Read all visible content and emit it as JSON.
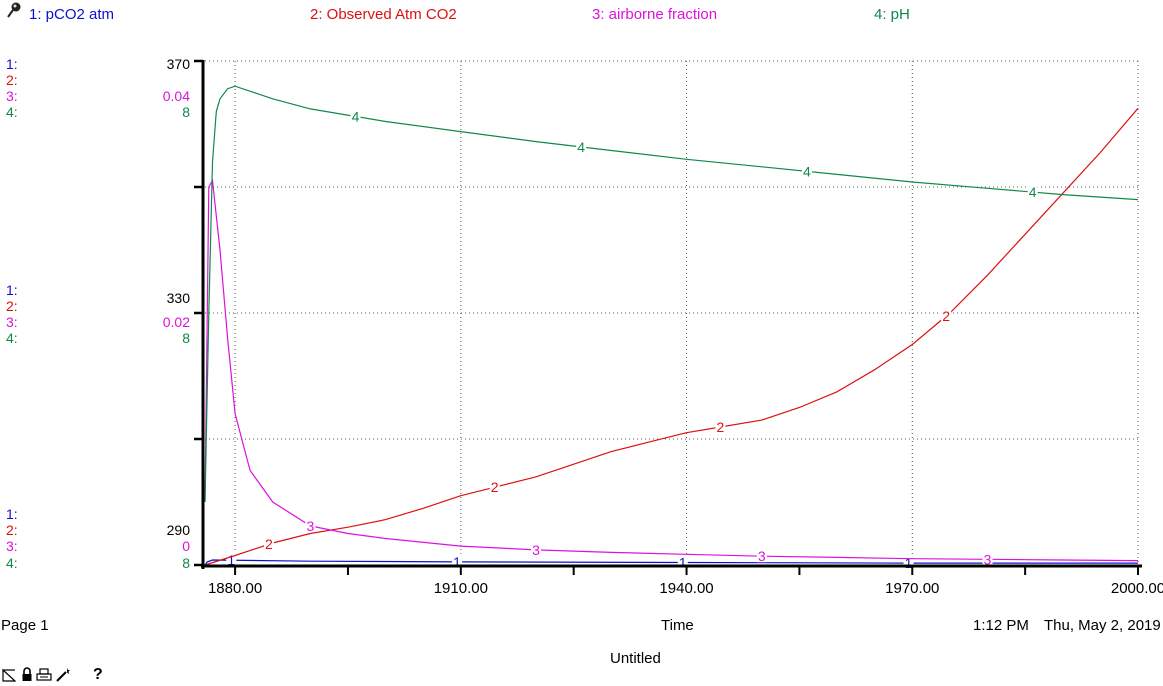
{
  "colors": {
    "pco2": "#1010cc",
    "observed": "#dd1111",
    "airborne": "#dd11dd",
    "ph": "#11884a",
    "axis": "#000000"
  },
  "legend": [
    {
      "label": "1: pCO2 atm",
      "color": "#1010cc"
    },
    {
      "label": "2: Observed Atm CO2",
      "color": "#dd1111"
    },
    {
      "label": "3: airborne fraction",
      "color": "#dd11dd"
    },
    {
      "label": "4: pH",
      "color": "#11884a"
    }
  ],
  "scales": {
    "top": {
      "s1": "1:",
      "s2": "2:",
      "s3": "3:",
      "s4": "4:",
      "v2": "370",
      "v3": "0.04",
      "v4": "8"
    },
    "mid": {
      "s1": "1:",
      "s2": "2:",
      "s3": "3:",
      "s4": "4:",
      "v2": "330",
      "v3": "0.02",
      "v4": "8"
    },
    "bot": {
      "s1": "1:",
      "s2": "2:",
      "s3": "3:",
      "s4": "4:",
      "v2": "290",
      "v3": "0",
      "v4": "8"
    }
  },
  "footer": {
    "page": "Page 1",
    "xlabel": "Time",
    "time": "1:12 PM",
    "date": "Thu, May 2, 2019",
    "doc_title": "Untitled"
  },
  "toolbar": {
    "help": "?"
  },
  "chart_data": {
    "type": "line",
    "xlabel": "Time",
    "xlim": [
      1876,
      2000
    ],
    "x_ticks": [
      "1880.00",
      "1910.00",
      "1940.00",
      "1970.00",
      "2000.00"
    ],
    "x_tick_values": [
      1880,
      1910,
      1940,
      1970,
      2000
    ],
    "grid": true,
    "series": [
      {
        "name": "1: pCO2 atm",
        "id": "1",
        "ylim": [
          290,
          370
        ],
        "x": [
          1876,
          1876.3,
          1877,
          1890,
          1910,
          1940,
          1970,
          2000
        ],
        "y": [
          290,
          290.5,
          290.8,
          290.6,
          290.5,
          290.4,
          290.3,
          290.3
        ],
        "markers": [
          1879.5,
          1909.5,
          1939.5,
          1969.5
        ]
      },
      {
        "name": "2: Observed Atm CO2",
        "id": "2",
        "ylim": [
          290,
          370
        ],
        "x": [
          1876,
          1880,
          1885,
          1890,
          1895,
          1900,
          1905,
          1910,
          1915,
          1920,
          1925,
          1930,
          1935,
          1940,
          1945,
          1950,
          1955,
          1960,
          1965,
          1970,
          1975,
          1980,
          1985,
          1990,
          1995,
          2000
        ],
        "y": [
          290,
          291.5,
          293.5,
          295,
          296,
          297.2,
          299,
          301,
          302.5,
          304,
          306,
          308,
          309.5,
          311,
          312,
          313,
          315,
          317.5,
          321,
          325,
          330,
          336,
          342.5,
          349,
          355.5,
          362.5
        ],
        "markers": [
          1884.5,
          1914.5,
          1944.5,
          1974.5
        ]
      },
      {
        "name": "3: airborne fraction",
        "id": "3",
        "ylim": [
          0,
          0.04
        ],
        "x": [
          1876,
          1876.5,
          1877,
          1878,
          1879,
          1880,
          1882,
          1885,
          1890,
          1895,
          1900,
          1910,
          1920,
          1930,
          1940,
          1950,
          1960,
          1970,
          1980,
          1990,
          2000
        ],
        "y": [
          0.005,
          0.03,
          0.0305,
          0.025,
          0.018,
          0.012,
          0.0075,
          0.005,
          0.0031,
          0.0025,
          0.0021,
          0.0015,
          0.0012,
          0.001,
          0.00085,
          0.0007,
          0.0006,
          0.0005,
          0.00045,
          0.0004,
          0.00035
        ],
        "markers": [
          1890,
          1920,
          1950,
          1980
        ]
      },
      {
        "name": "4: pH",
        "id": "4",
        "ylim": [
          7.95,
          8.35
        ],
        "x": [
          1876,
          1876.5,
          1877,
          1877.5,
          1878,
          1879,
          1880,
          1885,
          1890,
          1900,
          1910,
          1920,
          1930,
          1940,
          1950,
          1960,
          1970,
          1980,
          1990,
          2000
        ],
        "y": [
          8.0,
          8.15,
          8.27,
          8.31,
          8.32,
          8.328,
          8.33,
          8.32,
          8.312,
          8.302,
          8.294,
          8.286,
          8.279,
          8.272,
          8.266,
          8.26,
          8.254,
          8.249,
          8.244,
          8.24
        ],
        "markers": [
          1896,
          1926,
          1956,
          1986
        ]
      }
    ]
  }
}
